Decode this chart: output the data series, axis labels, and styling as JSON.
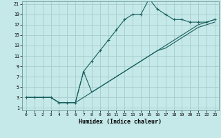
{
  "xlabel": "Humidex (Indice chaleur)",
  "bg_color": "#c5e8e8",
  "grid_color": "#a8cccc",
  "line_color": "#1a6060",
  "xlim": [
    -0.5,
    23.5
  ],
  "ylim": [
    0.5,
    21.5
  ],
  "xticks": [
    0,
    1,
    2,
    3,
    4,
    5,
    6,
    7,
    8,
    9,
    10,
    11,
    12,
    13,
    14,
    15,
    16,
    17,
    18,
    19,
    20,
    21,
    22,
    23
  ],
  "yticks": [
    1,
    3,
    5,
    7,
    9,
    11,
    13,
    15,
    17,
    19,
    21
  ],
  "line1_x": [
    0,
    1,
    2,
    3,
    4,
    5,
    6,
    7,
    8,
    9,
    10,
    11,
    12,
    13,
    14,
    15,
    16,
    17,
    18,
    19,
    20,
    21,
    22,
    23
  ],
  "line1_y": [
    3,
    3,
    3,
    3,
    2,
    2,
    2,
    8,
    10,
    12,
    14,
    16,
    18,
    19,
    19,
    22,
    20,
    19,
    18,
    18,
    17.5,
    17.5,
    17.5,
    18
  ],
  "line2_x": [
    0,
    1,
    2,
    3,
    4,
    5,
    6,
    7,
    8,
    9,
    10,
    11,
    12,
    13,
    14,
    15,
    16,
    17,
    18,
    19,
    20,
    21,
    22,
    23
  ],
  "line2_y": [
    3,
    3,
    3,
    3,
    2,
    2,
    2,
    3,
    4,
    5,
    6,
    7,
    8,
    9,
    10,
    11,
    12,
    13,
    14,
    15,
    16,
    17,
    17.5,
    18
  ],
  "line3_x": [
    0,
    1,
    2,
    3,
    4,
    5,
    6,
    7,
    8,
    9,
    10,
    11,
    12,
    13,
    14,
    15,
    16,
    17,
    18,
    19,
    20,
    21,
    22,
    23
  ],
  "line3_y": [
    3,
    3,
    3,
    3,
    2,
    2,
    2,
    8,
    4,
    5,
    6,
    7,
    8,
    9,
    10,
    11,
    12,
    12.5,
    13.5,
    14.5,
    15.5,
    16.5,
    17,
    17.5
  ]
}
